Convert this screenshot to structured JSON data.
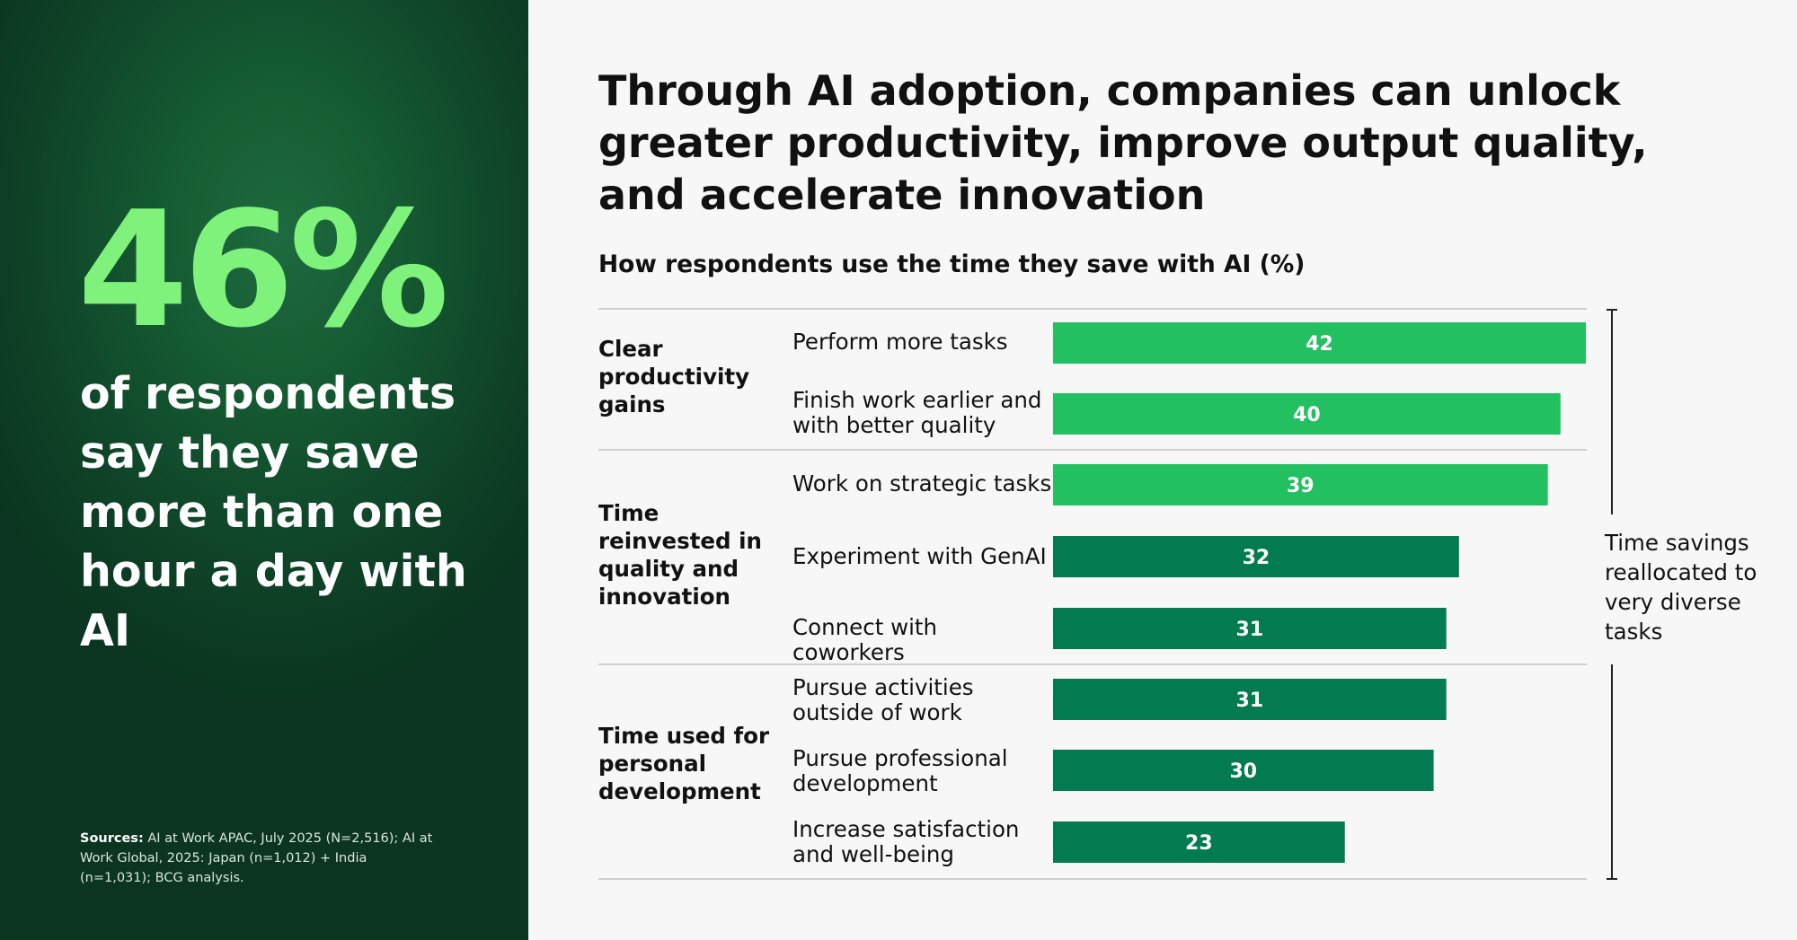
{
  "left_panel": {
    "big_stat": "46%",
    "stat_text": "of respondents say they save more than one hour a day with AI",
    "sources_label": "Sources:",
    "sources_text": "AI at Work APAC, July 2025 (N=2,516); AI at Work Global, 2025: Japan (n=1,012) + India (n=1,031); BCG analysis."
  },
  "main": {
    "title": "Through AI adoption, companies can unlock greater productivity, improve output quality, and accelerate innovation",
    "subtitle": "How respondents use the time they save with AI (%)",
    "bracket_note": "Time savings reallocated to very diverse tasks"
  },
  "colors": {
    "light_green": "#22c061",
    "dark_green": "#027b50",
    "stat_green": "#7ef27a",
    "panel_green": "#0f4428"
  },
  "chart_data": {
    "type": "bar",
    "orientation": "horizontal",
    "groups": [
      {
        "name": "Clear productivity gains",
        "rows": [
          0,
          1
        ]
      },
      {
        "name": "Time reinvested in quality and innovation",
        "rows": [
          2,
          3,
          4
        ]
      },
      {
        "name": "Time used for personal development",
        "rows": [
          5,
          6,
          7
        ]
      }
    ],
    "categories": [
      "Perform more tasks",
      "Finish work earlier and with better quality",
      "Work on strategic tasks",
      "Experiment with GenAI",
      "Connect with coworkers",
      "Pursue activities outside of work",
      "Pursue professional development",
      "Increase satisfaction and well-being"
    ],
    "values": [
      42,
      40,
      39,
      32,
      31,
      31,
      30,
      23
    ],
    "bar_colors": [
      "#22c061",
      "#22c061",
      "#22c061",
      "#027b50",
      "#027b50",
      "#027b50",
      "#027b50",
      "#027b50"
    ],
    "xlim": [
      0,
      42
    ],
    "grid": false,
    "legend": "none"
  }
}
